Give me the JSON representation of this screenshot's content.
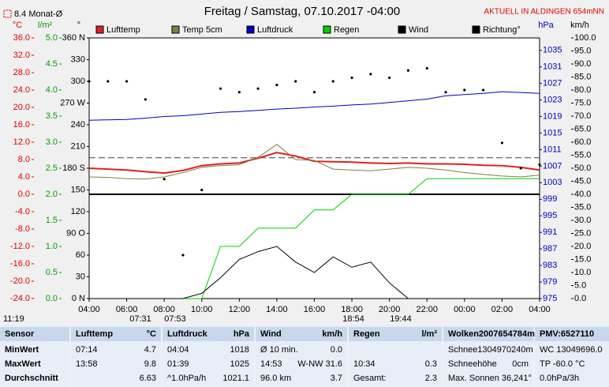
{
  "chart_data": {
    "type": "line",
    "title": "Freitag / Samstag, 07.10.2017 -04:00",
    "location": "AKTUELL IN ALDINGEN 654mNN",
    "monthly_avg": {
      "value": 8.4,
      "label": "8.4 Monat-Ø"
    },
    "current_time": "11:19",
    "sun_times": [
      "07:31",
      "07:53",
      "18:54",
      "19:44"
    ],
    "x": [
      4,
      5,
      6,
      7,
      8,
      9,
      10,
      11,
      12,
      13,
      14,
      15,
      16,
      17,
      18,
      19,
      20,
      21,
      22,
      23,
      24,
      25,
      26,
      27,
      28
    ],
    "xlim": [
      4,
      28
    ],
    "xticks": [
      {
        "value": 4,
        "label": "04:00"
      },
      {
        "value": 6,
        "label": "06:00"
      },
      {
        "value": 8,
        "label": "08:00"
      },
      {
        "value": 10,
        "label": "10:00"
      },
      {
        "value": 12,
        "label": "12:00"
      },
      {
        "value": 14,
        "label": "14:00"
      },
      {
        "value": 16,
        "label": "16:00"
      },
      {
        "value": 18,
        "label": "18:00"
      },
      {
        "value": 20,
        "label": "20:00"
      },
      {
        "value": 22,
        "label": "22:00"
      },
      {
        "value": 24,
        "label": "00:00"
      },
      {
        "value": 26,
        "label": "02:00"
      },
      {
        "value": 28,
        "label": "04:00"
      }
    ],
    "axes": [
      {
        "label": "°C",
        "color": "#e00000",
        "lim": [
          -24,
          36
        ],
        "ticks": [
          {
            "value": 36,
            "label": "36.0"
          },
          {
            "value": 32,
            "label": "32.0"
          },
          {
            "value": 28,
            "label": "28.0"
          },
          {
            "value": 24,
            "label": "24.0"
          },
          {
            "value": 20,
            "label": "20.0"
          },
          {
            "value": 16,
            "label": "16.0"
          },
          {
            "value": 12,
            "label": "12.0"
          },
          {
            "value": 8,
            "label": "8.0"
          },
          {
            "value": 4,
            "label": "4.0"
          },
          {
            "value": 0,
            "label": "0.0"
          },
          {
            "value": -4,
            "label": "-4.0"
          },
          {
            "value": -8,
            "label": "-8.0"
          },
          {
            "value": -12,
            "label": "-12.0"
          },
          {
            "value": -16,
            "label": "-16.0"
          },
          {
            "value": -20,
            "label": "-20.0"
          },
          {
            "value": -24,
            "label": "-24.0"
          }
        ]
      },
      {
        "label": "l/m²",
        "color": "#00a000",
        "lim": [
          0,
          5
        ],
        "ticks": [
          {
            "value": 0,
            "label": "0.0"
          },
          {
            "value": 0.5,
            "label": "0.5"
          },
          {
            "value": 1,
            "label": "1.0"
          },
          {
            "value": 1.5,
            "label": "1.5"
          },
          {
            "value": 2,
            "label": "2.0"
          },
          {
            "value": 2.5,
            "label": "2.5"
          },
          {
            "value": 3,
            "label": "3.0"
          },
          {
            "value": 3.5,
            "label": "3.5"
          },
          {
            "value": 4,
            "label": "4.0"
          },
          {
            "value": 4.5,
            "label": "4.5"
          },
          {
            "value": 5,
            "label": "5.0"
          }
        ]
      },
      {
        "label": "°",
        "color": "#000000",
        "lim": [
          0,
          360
        ],
        "ticks": [
          {
            "value": 0,
            "label": "0 N"
          },
          30,
          60,
          {
            "value": 90,
            "label": "90 O"
          },
          120,
          150,
          {
            "value": 180,
            "label": "180 S"
          },
          210,
          240,
          {
            "value": 270,
            "label": "270 W"
          },
          300,
          330,
          {
            "value": 360,
            "label": "360 N"
          }
        ]
      },
      {
        "label": "hPa",
        "color": "#0000c0",
        "lim": [
          975,
          1038
        ],
        "ticks": [
          975,
          979,
          983,
          987,
          991,
          995,
          999,
          1003,
          1007,
          1011,
          1015,
          1019,
          1023,
          1027,
          1031,
          1035
        ]
      },
      {
        "label": "km/h",
        "color": "#000000",
        "lim": [
          0,
          100
        ],
        "ticks": [
          {
            "value": 0,
            "label": "0.0"
          },
          {
            "value": 5,
            "label": "5.0"
          },
          {
            "value": 10,
            "label": "10.0"
          },
          {
            "value": 15,
            "label": "15.0"
          },
          {
            "value": 20,
            "label": "20.0"
          },
          {
            "value": 25,
            "label": "25.0"
          },
          {
            "value": 30,
            "label": "30.0"
          },
          {
            "value": 35,
            "label": "35.0"
          },
          {
            "value": 40,
            "label": "40.0"
          },
          {
            "value": 45,
            "label": "45.0"
          },
          {
            "value": 50,
            "label": "50.0"
          },
          {
            "value": 55,
            "label": "55.0"
          },
          {
            "value": 60,
            "label": "60.0"
          },
          {
            "value": 65,
            "label": "65.0"
          },
          {
            "value": 70,
            "label": "70.0"
          },
          {
            "value": 75,
            "label": "75.0"
          },
          {
            "value": 80,
            "label": "80.0"
          },
          {
            "value": 85,
            "label": "85.0"
          },
          {
            "value": 90,
            "label": "90.0"
          },
          {
            "value": 95,
            "label": "95.0"
          },
          {
            "value": 100,
            "label": "100.0"
          }
        ]
      }
    ],
    "series": [
      {
        "name": "Lufttemp",
        "color": "#e02020",
        "axis": 0,
        "style": "line",
        "values": [
          6.0,
          5.8,
          5.6,
          5.2,
          4.9,
          5.5,
          6.6,
          7.0,
          7.2,
          8.3,
          9.6,
          8.8,
          7.6,
          7.5,
          7.4,
          7.2,
          7.1,
          7.2,
          7.0,
          7.0,
          6.9,
          6.7,
          6.6,
          6.2,
          5.6
        ]
      },
      {
        "name": "Temp 5cm",
        "color": "#808040",
        "axis": 0,
        "style": "line",
        "values": [
          4.0,
          3.9,
          3.6,
          3.5,
          4.0,
          5.0,
          6.2,
          6.6,
          6.8,
          8.5,
          11.5,
          8.0,
          7.8,
          5.8,
          5.6,
          5.4,
          5.8,
          6.2,
          6.0,
          5.6,
          5.0,
          4.6,
          4.2,
          4.0,
          4.4
        ]
      },
      {
        "name": "Luftdruck",
        "color": "#0000c0",
        "axis": 3,
        "style": "line",
        "values": [
          1018.1,
          1018.2,
          1018.3,
          1018.6,
          1019.0,
          1019.2,
          1019.6,
          1020.0,
          1020.2,
          1020.5,
          1020.8,
          1021.0,
          1021.3,
          1021.5,
          1021.8,
          1022.0,
          1022.4,
          1022.8,
          1023.2,
          1024.0,
          1024.3,
          1024.6,
          1025.0,
          1024.8,
          1024.6
        ]
      },
      {
        "name": "Regen",
        "color": "#00d000",
        "axis": 1,
        "style": "line",
        "values": [
          0,
          0,
          0,
          0,
          0,
          0,
          0,
          1.0,
          1.0,
          1.35,
          1.35,
          1.35,
          1.7,
          1.7,
          2.0,
          2.0,
          2.0,
          2.0,
          2.3,
          2.3,
          2.3,
          2.3,
          2.3,
          2.3,
          2.3
        ]
      },
      {
        "name": "Wind",
        "color": "#000000",
        "axis": 4,
        "style": "line",
        "values": [
          0,
          0,
          0,
          0,
          0,
          0,
          2,
          8,
          15,
          18,
          20,
          14,
          10,
          16,
          12,
          14,
          6,
          0,
          0,
          0,
          0,
          0,
          0,
          0,
          0
        ]
      },
      {
        "name": "Richtung°",
        "color": "#000000",
        "axis": 2,
        "style": "dots",
        "values": [
          300,
          300,
          300,
          275,
          165,
          60,
          150,
          290,
          285,
          290,
          295,
          300,
          285,
          300,
          305,
          310,
          305,
          315,
          318,
          285,
          288,
          288,
          215,
          180,
          185
        ]
      }
    ]
  },
  "table": {
    "groups": [
      {
        "header": [
          "Sensor"
        ],
        "rows": [
          [
            "MinWert"
          ],
          [
            "MaxWert"
          ],
          [
            "Durchschnitt"
          ]
        ]
      },
      {
        "header": [
          "Lufttemp",
          "°C"
        ],
        "rows": [
          [
            "07:14",
            "4.7"
          ],
          [
            "13:58",
            "9.8"
          ],
          [
            "6.63"
          ]
        ]
      },
      {
        "header": [
          "Luftdruck",
          "hPa"
        ],
        "rows": [
          [
            "04:04",
            "1018"
          ],
          [
            "01:39",
            "1025"
          ],
          [
            "^1.0hPa/h",
            "1021.1"
          ]
        ]
      },
      {
        "header": [
          "Wind",
          "km/h"
        ],
        "rows": [
          [
            "Ø 10 min.",
            "0.0"
          ],
          [
            "14:53",
            "W-NW 31.6"
          ],
          [
            "96.0 km",
            "3.7"
          ]
        ]
      },
      {
        "header": [
          "Regen",
          "l/m²"
        ],
        "rows": [
          [],
          [
            "10:34",
            "0.3"
          ],
          [
            "Gesamt:",
            "2.3"
          ]
        ]
      },
      {
        "header": [
          "Wolken2007654784m"
        ],
        "rows": [
          [
            "Schnee1304970240m"
          ],
          [
            "Schneehöhe",
            "0cm"
          ],
          [
            "Max. Sonnen 36,241°"
          ]
        ]
      },
      {
        "header": [
          "PMV:6527110"
        ],
        "rows": [
          [
            "WC 13049696.0"
          ],
          [
            "TP -60.0 °C"
          ],
          [
            "0.0hPa/3h"
          ]
        ]
      }
    ]
  }
}
